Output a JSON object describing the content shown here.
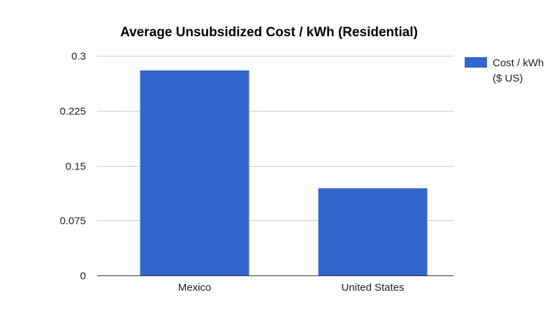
{
  "chart_data": {
    "type": "bar",
    "title": "Average Unsubsidized Cost / kWh (Residential)",
    "xlabel": "",
    "ylabel": "",
    "categories": [
      "Mexico",
      "United States"
    ],
    "series": [
      {
        "name": "Cost / kWh ($ US)",
        "name_lines": [
          "Cost / kWh",
          "($ US)"
        ],
        "values": [
          0.28,
          0.119
        ]
      }
    ],
    "ylim": [
      0,
      0.3
    ],
    "yticks": [
      0,
      0.075,
      0.15,
      0.225,
      0.3
    ],
    "ytick_labels": [
      "0",
      "0.075",
      "0.15",
      "0.225",
      "0.3"
    ],
    "grid": true,
    "legend_position": "right-top",
    "bar_color": "#3366cc",
    "grid_color": "#cccccc",
    "baseline_color": "#333333"
  }
}
